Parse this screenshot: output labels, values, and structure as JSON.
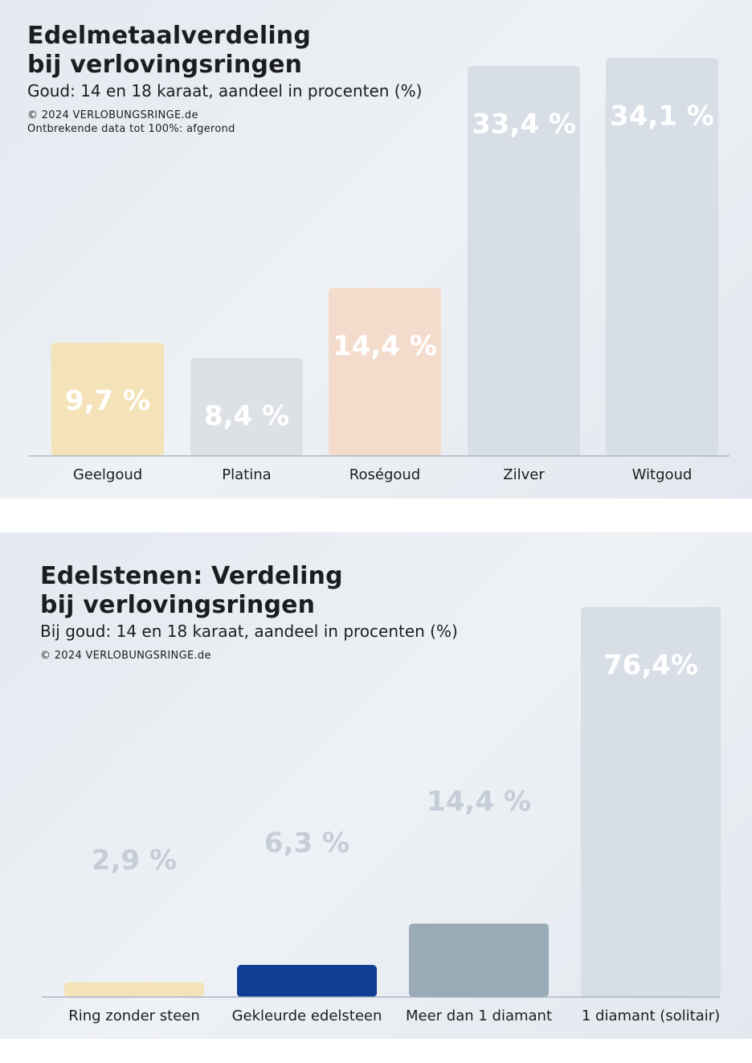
{
  "chart_data": [
    {
      "type": "bar",
      "title": "Edelmetaalverdeling bij verlovingsringen",
      "subtitle": "Goud: 14 en 18 karaat, aandeel in procenten (%)",
      "source": "© 2024 VERLOBUNGSRINGE.de",
      "note": "Ontbrekende data tot 100%: afgerond",
      "categories": [
        "Geelgoud",
        "Platina",
        "Roségoud",
        "Zilver",
        "Witgoud"
      ],
      "values": [
        9.7,
        8.4,
        14.4,
        33.4,
        34.1
      ],
      "value_labels": [
        "9,7 %",
        "8,4 %",
        "14,4 %",
        "33,4 %",
        "34,1 %"
      ],
      "colors": [
        "#f4e3b8",
        "#dde1e5",
        "#f4dccd",
        "#d8dee5",
        "#d8dee5"
      ]
    },
    {
      "type": "bar",
      "title": "Edelstenen: Verdeling bij verlovingsringen",
      "subtitle": "Bij goud: 14 en 18 karaat, aandeel in procenten (%)",
      "source": "© 2024 VERLOBUNGSRINGE.de",
      "categories": [
        "Ring zonder steen",
        "Gekleurde edelsteen",
        "Meer dan 1 diamant",
        "1 diamant (solitair)"
      ],
      "values": [
        2.9,
        6.3,
        14.4,
        76.4
      ],
      "value_labels": [
        "2,9 %",
        "6,3 %",
        "14,4 %",
        "76,4%"
      ],
      "colors": [
        "#f4e3b8",
        "#0f3e93",
        "#9aabb8",
        "#d8dee5"
      ]
    }
  ]
}
